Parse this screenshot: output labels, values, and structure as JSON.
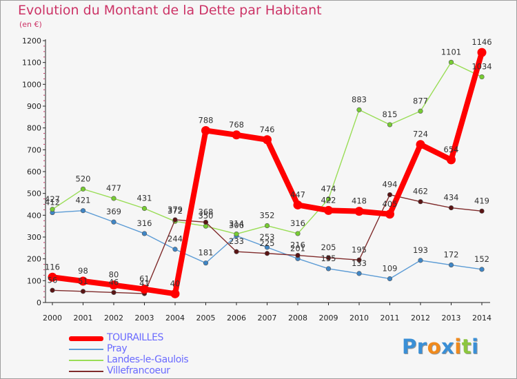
{
  "title": "Evolution du Montant de la Dette par Habitant",
  "subtitle": "(en €)",
  "logo": {
    "text": "Proxiti",
    "letters": [
      "P",
      "r",
      "o",
      "x",
      "i",
      "t",
      "i"
    ],
    "colors": [
      "#3a8fd6",
      "#3a8fd6",
      "#f08a1d",
      "#3a8fd6",
      "#f08a1d",
      "#8cc63f",
      "#3a8fd6"
    ]
  },
  "chart_data": {
    "type": "line",
    "title": "Evolution du Montant de la Dette par Habitant",
    "ylabel": "(en €)",
    "xlabel": "",
    "x": [
      "2000",
      "2001",
      "2002",
      "2003",
      "2004",
      "2005",
      "2006",
      "2007",
      "2008",
      "2009",
      "2010",
      "2011",
      "2012",
      "2013",
      "2014"
    ],
    "ylim": [
      0,
      1200
    ],
    "yticks": [
      0,
      100,
      200,
      300,
      400,
      500,
      600,
      700,
      800,
      900,
      1000,
      1100,
      1200
    ],
    "grid": false,
    "legend_position": "bottom-left",
    "series": [
      {
        "name": "TOURAILLES",
        "color": "#ff0000",
        "marker_color": "#ff0000",
        "emphasis": true,
        "values": [
          116,
          98,
          80,
          61,
          40,
          788,
          768,
          746,
          447,
          422,
          418,
          405,
          724,
          654,
          1146
        ]
      },
      {
        "name": "Pray",
        "color": "#5b9bd5",
        "marker_color": "#3f86c6",
        "emphasis": false,
        "values": [
          412,
          421,
          369,
          316,
          244,
          181,
          306,
          253,
          201,
          155,
          133,
          109,
          193,
          172,
          152
        ]
      },
      {
        "name": "Landes-le-Gaulois",
        "color": "#99dd55",
        "marker_color": "#77cc33",
        "emphasis": false,
        "values": [
          427,
          520,
          477,
          431,
          372,
          350,
          314,
          352,
          316,
          474,
          883,
          815,
          877,
          1101,
          1034
        ]
      },
      {
        "name": "Villefrancoeur",
        "color": "#7f2a2a",
        "marker_color": "#5a1414",
        "emphasis": false,
        "values": [
          56,
          51,
          46,
          41,
          379,
          368,
          233,
          225,
          216,
          205,
          195,
          494,
          462,
          434,
          419
        ]
      }
    ]
  }
}
